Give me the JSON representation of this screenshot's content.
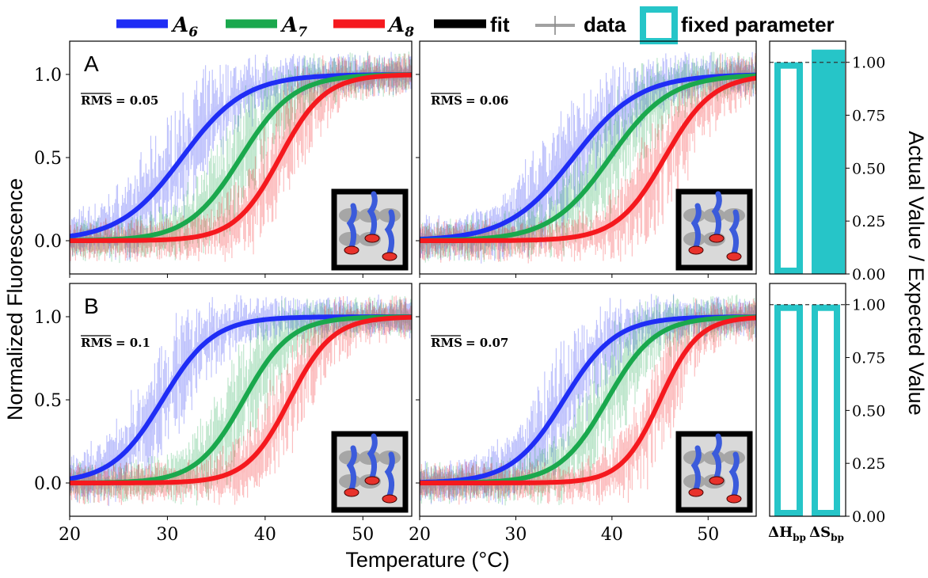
{
  "legend": {
    "items": [
      {
        "label": "A",
        "sub": "6",
        "color": "#1f2df5",
        "kind": "fit"
      },
      {
        "label": "A",
        "sub": "7",
        "color": "#1aa84d",
        "kind": "fit"
      },
      {
        "label": "A",
        "sub": "8",
        "color": "#f5191e",
        "kind": "fit"
      },
      {
        "label": "fit",
        "color": "#000000",
        "kind": "fit"
      },
      {
        "label": "data",
        "color": "#888888",
        "kind": "data"
      },
      {
        "label": "fixed parameter",
        "color": "#26c5c8",
        "kind": "box"
      }
    ]
  },
  "axes": {
    "ylabel": "Normalized Fluorescence",
    "xlabel": "Temperature (°C)",
    "right_ylabel": "Actual Value / Expected Value",
    "bar_categories": [
      {
        "main": "ΔH",
        "sub": "bp"
      },
      {
        "main": "ΔS",
        "sub": "bp"
      }
    ]
  },
  "colors": {
    "A6": "#1f2df5",
    "A7": "#1aa84d",
    "A8": "#f5191e",
    "fixed": "#26c5c8",
    "frame": "#000000"
  },
  "chart_data": [
    {
      "type": "line",
      "id": "A-left",
      "panel_label": "A",
      "rms_label": "RMS",
      "rms_value": "= 0.05",
      "xlim": [
        20,
        55
      ],
      "ylim": [
        -0.2,
        1.2
      ],
      "xticks": [
        20,
        30,
        40,
        50
      ],
      "yticks": [
        0.0,
        0.5,
        1.0
      ],
      "series": [
        {
          "name": "A6",
          "midpoint": 31.5,
          "width": 3.2
        },
        {
          "name": "A7",
          "midpoint": 37.5,
          "width": 2.7
        },
        {
          "name": "A8",
          "midpoint": 41.5,
          "width": 2.3
        }
      ]
    },
    {
      "type": "line",
      "id": "A-right",
      "rms_label": "RMS",
      "rms_value": "= 0.06",
      "xlim": [
        20,
        55
      ],
      "ylim": [
        -0.2,
        1.2
      ],
      "xticks": [
        20,
        30,
        40,
        50
      ],
      "yticks": [
        0.0,
        0.5,
        1.0
      ],
      "series": [
        {
          "name": "A6",
          "midpoint": 36.0,
          "width": 3.4
        },
        {
          "name": "A7",
          "midpoint": 39.8,
          "width": 3.1
        },
        {
          "name": "A8",
          "midpoint": 45.5,
          "width": 2.5
        }
      ]
    },
    {
      "type": "bar",
      "id": "A-bars",
      "categories": [
        "ΔHbp",
        "ΔSbp"
      ],
      "values": [
        1.0,
        1.06
      ],
      "fixed": [
        true,
        false
      ],
      "reference": 1.0,
      "ylim": [
        0,
        1.1
      ],
      "yticks": [
        0.0,
        0.25,
        0.5,
        0.75,
        1.0
      ]
    },
    {
      "type": "line",
      "id": "B-left",
      "panel_label": "B",
      "rms_label": "RMS",
      "rms_value": "= 0.1",
      "xlim": [
        20,
        55
      ],
      "ylim": [
        -0.2,
        1.2
      ],
      "xticks": [
        20,
        30,
        40,
        50
      ],
      "yticks": [
        0.0,
        0.5,
        1.0
      ],
      "series": [
        {
          "name": "A6",
          "midpoint": 29.5,
          "width": 2.6
        },
        {
          "name": "A7",
          "midpoint": 37.8,
          "width": 2.4
        },
        {
          "name": "A8",
          "midpoint": 42.5,
          "width": 2.2
        }
      ]
    },
    {
      "type": "line",
      "id": "B-right",
      "rms_label": "RMS",
      "rms_value": "= 0.07",
      "xlim": [
        20,
        55
      ],
      "ylim": [
        -0.2,
        1.2
      ],
      "xticks": [
        20,
        30,
        40,
        50
      ],
      "yticks": [
        0.0,
        0.5,
        1.0
      ],
      "series": [
        {
          "name": "A6",
          "midpoint": 35.0,
          "width": 2.7
        },
        {
          "name": "A7",
          "midpoint": 39.5,
          "width": 2.5
        },
        {
          "name": "A8",
          "midpoint": 45.0,
          "width": 2.0
        }
      ]
    },
    {
      "type": "bar",
      "id": "B-bars",
      "categories": [
        "ΔHbp",
        "ΔSbp"
      ],
      "values": [
        1.0,
        1.0
      ],
      "fixed": [
        true,
        true
      ],
      "reference": 1.0,
      "ylim": [
        0,
        1.1
      ],
      "yticks": [
        0.0,
        0.25,
        0.5,
        0.75,
        1.0
      ]
    }
  ]
}
